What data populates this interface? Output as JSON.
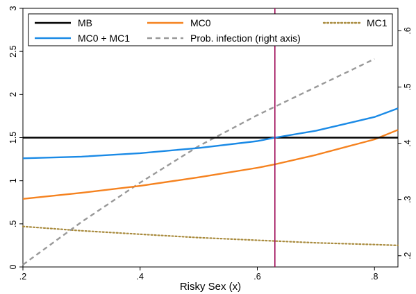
{
  "chart_data": {
    "type": "line",
    "xlabel": "Risky Sex (x)",
    "ylabel": "",
    "ylabel_right": "",
    "xlim": [
      0.2,
      0.84
    ],
    "ylim_left": [
      0,
      3
    ],
    "ylim_right": [
      0.18,
      0.64
    ],
    "x_ticks": [
      0.2,
      0.4,
      0.6,
      0.8
    ],
    "x_tick_labels": [
      ".2",
      ".4",
      ".6",
      ".8"
    ],
    "y_ticks_left": [
      0,
      0.5,
      1,
      1.5,
      2,
      2.5,
      3
    ],
    "y_tick_labels_left": [
      "0",
      ".5",
      "1",
      "1.5",
      "2",
      "2.5",
      "3"
    ],
    "y_ticks_right": [
      0.2,
      0.3,
      0.4,
      0.5,
      0.6
    ],
    "y_tick_labels_right": [
      ".2",
      ".3",
      ".4",
      ".5",
      ".6"
    ],
    "grid": false,
    "legend_placement": "top",
    "reference_line_x": 0.63,
    "reference_line_color": "#a0105a",
    "series": [
      {
        "name": "MB",
        "axis": "left",
        "color": "#000000",
        "style": "solid",
        "x": [
          0.2,
          0.84
        ],
        "values": [
          1.5,
          1.5
        ]
      },
      {
        "name": "MC0",
        "axis": "left",
        "color": "#f5821f",
        "style": "solid",
        "x": [
          0.2,
          0.3,
          0.4,
          0.5,
          0.6,
          0.63,
          0.7,
          0.8,
          0.84
        ],
        "values": [
          0.79,
          0.86,
          0.94,
          1.04,
          1.15,
          1.19,
          1.3,
          1.48,
          1.59
        ]
      },
      {
        "name": "MC1",
        "axis": "left",
        "color": "#a88a3c",
        "style": "dotted",
        "x": [
          0.2,
          0.3,
          0.4,
          0.5,
          0.6,
          0.7,
          0.8,
          0.84
        ],
        "values": [
          0.47,
          0.42,
          0.38,
          0.34,
          0.31,
          0.28,
          0.26,
          0.25
        ]
      },
      {
        "name": "MC0 + MC1",
        "axis": "left",
        "color": "#1a8ae6",
        "style": "solid",
        "x": [
          0.2,
          0.3,
          0.4,
          0.5,
          0.6,
          0.63,
          0.7,
          0.8,
          0.84
        ],
        "values": [
          1.26,
          1.28,
          1.32,
          1.38,
          1.46,
          1.5,
          1.58,
          1.74,
          1.84
        ]
      },
      {
        "name": "Prob. infection (right axis)",
        "axis": "right",
        "color": "#999999",
        "style": "dashed",
        "x": [
          0.2,
          0.3,
          0.4,
          0.5,
          0.6,
          0.7,
          0.8
        ],
        "values": [
          0.184,
          0.26,
          0.33,
          0.395,
          0.45,
          0.5,
          0.55
        ]
      }
    ],
    "legend_order": [
      "MB",
      "MC0",
      "MC1",
      "MC0 + MC1",
      "Prob. infection (right axis)"
    ]
  }
}
